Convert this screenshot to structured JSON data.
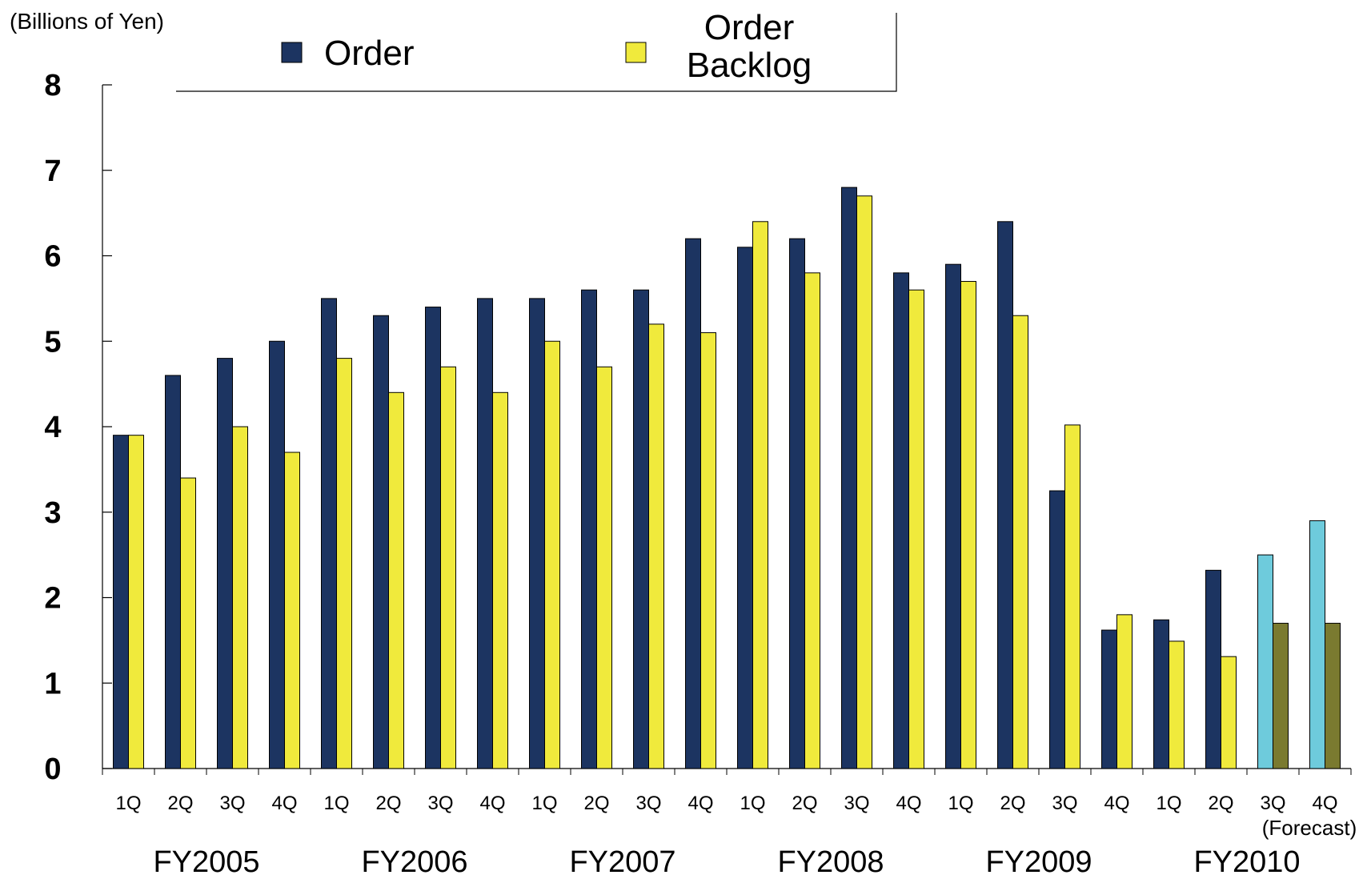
{
  "chart_data": {
    "type": "bar",
    "unit_label": "(Billions of Yen)",
    "ylim": [
      0,
      8
    ],
    "yticks": [
      "0",
      "1",
      "2",
      "3",
      "4",
      "5",
      "6",
      "7",
      "8"
    ],
    "categories": [
      "1Q",
      "2Q",
      "3Q",
      "4Q",
      "1Q",
      "2Q",
      "3Q",
      "4Q",
      "1Q",
      "2Q",
      "3Q",
      "4Q",
      "1Q",
      "2Q",
      "3Q",
      "4Q",
      "1Q",
      "2Q",
      "3Q",
      "4Q",
      "1Q",
      "2Q",
      "3Q",
      "4Q"
    ],
    "groups": [
      {
        "label": "FY2005",
        "start": 0,
        "end": 3
      },
      {
        "label": "FY2006",
        "start": 4,
        "end": 7
      },
      {
        "label": "FY2007",
        "start": 8,
        "end": 11
      },
      {
        "label": "FY2008",
        "start": 12,
        "end": 15
      },
      {
        "label": "FY2009",
        "start": 16,
        "end": 19
      },
      {
        "label": "FY2010",
        "start": 20,
        "end": 23
      }
    ],
    "forecast_note": "(Forecast)",
    "forecast_from_index": 22,
    "series": [
      {
        "name": "Order",
        "color": "#1c3461",
        "forecast_color": "#6ecbdc",
        "values": [
          3.9,
          4.6,
          4.8,
          5.0,
          5.5,
          5.3,
          5.4,
          5.5,
          5.5,
          5.6,
          5.6,
          6.2,
          6.1,
          6.2,
          6.8,
          5.8,
          5.9,
          6.4,
          3.25,
          1.62,
          1.74,
          2.32,
          2.5,
          2.9
        ]
      },
      {
        "name": "Order\nBacklog",
        "color": "#f0ea3c",
        "forecast_color": "#7a7a30",
        "values": [
          3.9,
          3.4,
          4.0,
          3.7,
          4.8,
          4.4,
          4.7,
          4.4,
          5.0,
          4.7,
          5.2,
          5.1,
          6.4,
          5.8,
          6.7,
          5.6,
          5.7,
          5.3,
          4.02,
          1.8,
          1.49,
          1.31,
          1.7,
          1.7
        ]
      }
    ],
    "legend": {
      "order_label": "Order",
      "backlog_label_line1": "Order",
      "backlog_label_line2": "Backlog",
      "placement": "top"
    }
  }
}
